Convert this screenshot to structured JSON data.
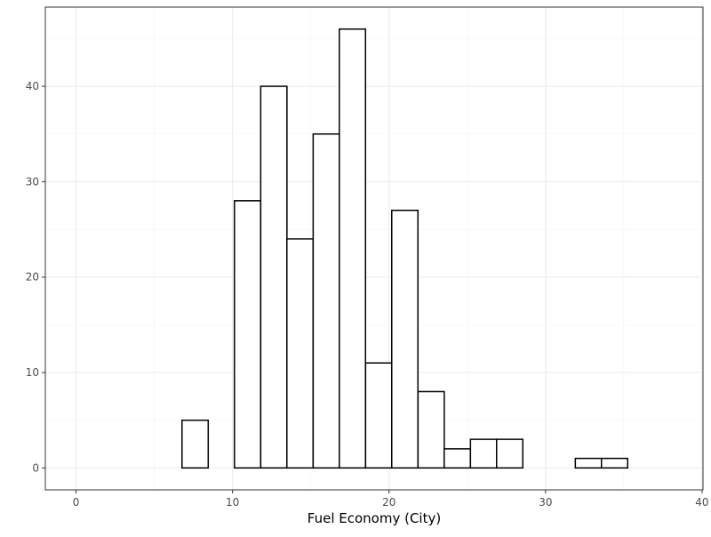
{
  "chart_data": {
    "type": "bar",
    "bin_width": 1.675,
    "bins": [
      {
        "x": 0.91,
        "count": 0
      },
      {
        "x": 2.59,
        "count": 0
      },
      {
        "x": 4.26,
        "count": 0
      },
      {
        "x": 5.94,
        "count": 0
      },
      {
        "x": 7.61,
        "count": 5
      },
      {
        "x": 9.29,
        "count": 0
      },
      {
        "x": 10.96,
        "count": 28
      },
      {
        "x": 12.64,
        "count": 40
      },
      {
        "x": 14.31,
        "count": 24
      },
      {
        "x": 15.99,
        "count": 35
      },
      {
        "x": 17.66,
        "count": 46
      },
      {
        "x": 19.34,
        "count": 11
      },
      {
        "x": 21.01,
        "count": 27
      },
      {
        "x": 22.69,
        "count": 8
      },
      {
        "x": 24.36,
        "count": 2
      },
      {
        "x": 26.04,
        "count": 3
      },
      {
        "x": 27.71,
        "count": 3
      },
      {
        "x": 29.39,
        "count": 0
      },
      {
        "x": 31.06,
        "count": 0
      },
      {
        "x": 32.74,
        "count": 1
      },
      {
        "x": 34.41,
        "count": 1
      },
      {
        "x": 36.09,
        "count": 0
      },
      {
        "x": 37.76,
        "count": 0
      }
    ],
    "xlabel": "Fuel Economy (City)",
    "ylabel": "",
    "xlim": [
      -1.96,
      40.06
    ],
    "ylim": [
      -2.3,
      48.3
    ],
    "xticks": [
      0,
      10,
      20,
      30,
      40
    ],
    "yticks": [
      0,
      10,
      20,
      30,
      40
    ],
    "grid": true,
    "colors": {
      "bar_fill": "#ffffff",
      "bar_stroke": "#000000",
      "grid_major": "#ebebeb",
      "grid_minor": "#f5f5f5",
      "panel_border": "#333333",
      "tick_text": "#4d4d4d"
    }
  }
}
